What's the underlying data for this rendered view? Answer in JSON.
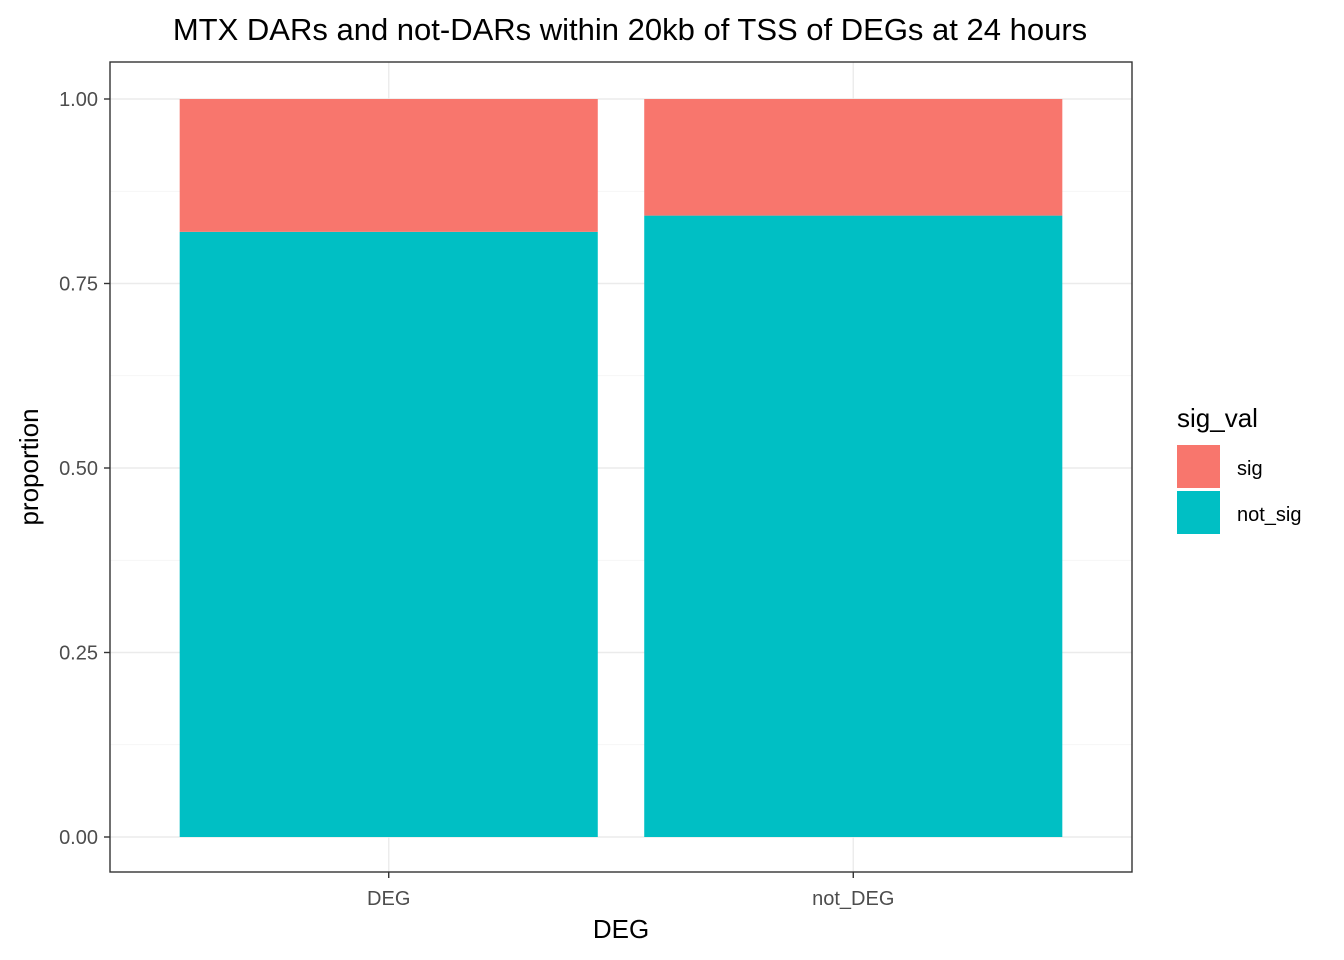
{
  "chart_data": {
    "type": "bar",
    "stacked": true,
    "title": "MTX DARs and not-DARs within 20kb of TSS of DEGs at 24 hours",
    "xlabel": "DEG",
    "ylabel": "proportion",
    "categories": [
      "DEG",
      "not_DEG"
    ],
    "ylim": [
      0,
      1
    ],
    "y_ticks": [
      "0.00",
      "0.25",
      "0.50",
      "0.75",
      "1.00"
    ],
    "grid": true,
    "legend": {
      "title": "sig_val",
      "placement": "right"
    },
    "series": [
      {
        "name": "not_sig",
        "values": [
          0.82,
          0.842
        ],
        "color": "#00BFC4"
      },
      {
        "name": "sig",
        "values": [
          0.18,
          0.158
        ],
        "color": "#F8766D"
      }
    ],
    "legend_order": [
      "sig",
      "not_sig"
    ]
  }
}
